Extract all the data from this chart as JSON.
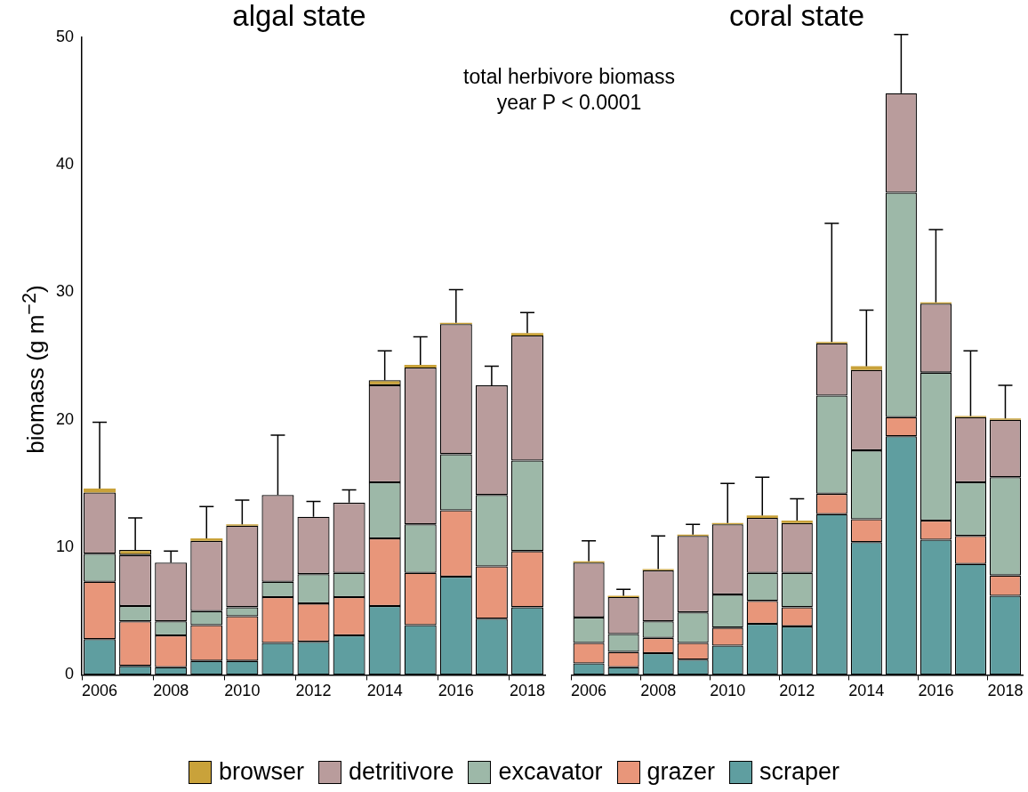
{
  "chart_data": [
    {
      "type": "bar",
      "title": "algal state",
      "ylabel": "biomass (g m$^{−2}$)",
      "stacked": true,
      "legend": "bottom",
      "annotations": [
        "total herbivore biomass",
        "year P < 0.0001"
      ],
      "categories": [
        "2006",
        null,
        "2008",
        null,
        "2010",
        null,
        "2012",
        null,
        "2014",
        null,
        "2016",
        null,
        "2018"
      ],
      "ylim": [
        0,
        50
      ],
      "yticks": [
        0,
        10,
        20,
        30,
        40,
        50
      ],
      "series": [
        {
          "name": "scraper",
          "color": "#5f9ea0",
          "values": [
            2.8,
            0.7,
            0.6,
            1.1,
            1.1,
            2.5,
            2.6,
            3.1,
            5.4,
            3.9,
            7.7,
            4.4,
            5.3
          ]
        },
        {
          "name": "grazer",
          "color": "#e8967a",
          "values": [
            4.5,
            3.5,
            2.5,
            2.8,
            3.5,
            3.6,
            3.0,
            3.0,
            5.3,
            4.1,
            5.2,
            4.1,
            4.4
          ]
        },
        {
          "name": "excavator",
          "color": "#9db8a8",
          "values": [
            2.2,
            1.2,
            1.1,
            1.1,
            0.7,
            1.2,
            2.3,
            1.9,
            4.4,
            3.8,
            4.4,
            5.6,
            7.1
          ]
        },
        {
          "name": "detritivore",
          "color": "#b99c9c",
          "values": [
            4.8,
            4.0,
            4.6,
            5.5,
            6.4,
            6.8,
            4.5,
            5.5,
            7.6,
            12.3,
            10.2,
            8.6,
            9.8
          ]
        },
        {
          "name": "browser",
          "color": "#c9a23a",
          "values": [
            0.3,
            0.4,
            0,
            0.2,
            0.1,
            0,
            0,
            0,
            0.4,
            0.2,
            0.1,
            0,
            0.2
          ],
          "errors": [
            [
              14.6,
              19.8
            ],
            [
              9.8,
              12.3
            ],
            [
              8.8,
              9.7
            ],
            [
              10.7,
              13.2
            ],
            [
              11.8,
              13.7
            ],
            [
              14.1,
              18.8
            ],
            [
              12.4,
              13.6
            ],
            [
              13.5,
              14.5
            ],
            [
              23.1,
              25.4
            ],
            [
              24.3,
              26.5
            ],
            [
              27.6,
              30.2
            ],
            [
              22.7,
              24.2
            ],
            [
              26.8,
              28.4
            ]
          ]
        }
      ]
    },
    {
      "type": "bar",
      "title": "coral state",
      "stacked": true,
      "tick_labels": "x",
      "legend": "bottom",
      "categories": [
        "2006",
        null,
        "2008",
        null,
        "2010",
        null,
        "2012",
        null,
        "2014",
        null,
        "2016",
        null,
        "2018"
      ],
      "ylim": [
        0,
        50
      ],
      "yticks": [
        0,
        10,
        20,
        30,
        40,
        50
      ],
      "series": [
        {
          "name": "scraper",
          "color": "#5f9ea0",
          "values": [
            0.9,
            0.6,
            1.7,
            1.2,
            2.3,
            4.0,
            3.8,
            12.6,
            10.4,
            18.7,
            10.6,
            8.7,
            6.2
          ]
        },
        {
          "name": "grazer",
          "color": "#e8967a",
          "values": [
            1.6,
            1.2,
            1.2,
            1.3,
            1.4,
            1.8,
            1.5,
            1.6,
            1.8,
            1.5,
            1.5,
            2.2,
            1.6
          ]
        },
        {
          "name": "excavator",
          "color": "#9db8a8",
          "values": [
            2.0,
            1.4,
            1.3,
            2.4,
            2.6,
            2.2,
            2.7,
            7.7,
            5.4,
            17.6,
            11.6,
            4.2,
            7.7
          ]
        },
        {
          "name": "detritivore",
          "color": "#b99c9c",
          "values": [
            4.3,
            2.9,
            4.0,
            6.0,
            5.5,
            4.3,
            3.9,
            4.1,
            6.3,
            7.8,
            5.4,
            5.1,
            4.5
          ]
        },
        {
          "name": "browser",
          "color": "#c9a23a",
          "values": [
            0.1,
            0.1,
            0.1,
            0.1,
            0.1,
            0.2,
            0.2,
            0.1,
            0.3,
            0,
            0.1,
            0.1,
            0.1
          ],
          "errors": [
            [
              8.9,
              10.5
            ],
            [
              6.2,
              6.7
            ],
            [
              8.3,
              10.9
            ],
            [
              11.0,
              11.8
            ],
            [
              11.9,
              15.0
            ],
            [
              12.5,
              15.5
            ],
            [
              12.1,
              13.8
            ],
            [
              26.1,
              35.4
            ],
            [
              24.2,
              28.6
            ],
            [
              45.6,
              50.2
            ],
            [
              29.2,
              34.9
            ],
            [
              20.3,
              25.4
            ],
            [
              20.1,
              22.7
            ]
          ]
        }
      ]
    }
  ]
}
